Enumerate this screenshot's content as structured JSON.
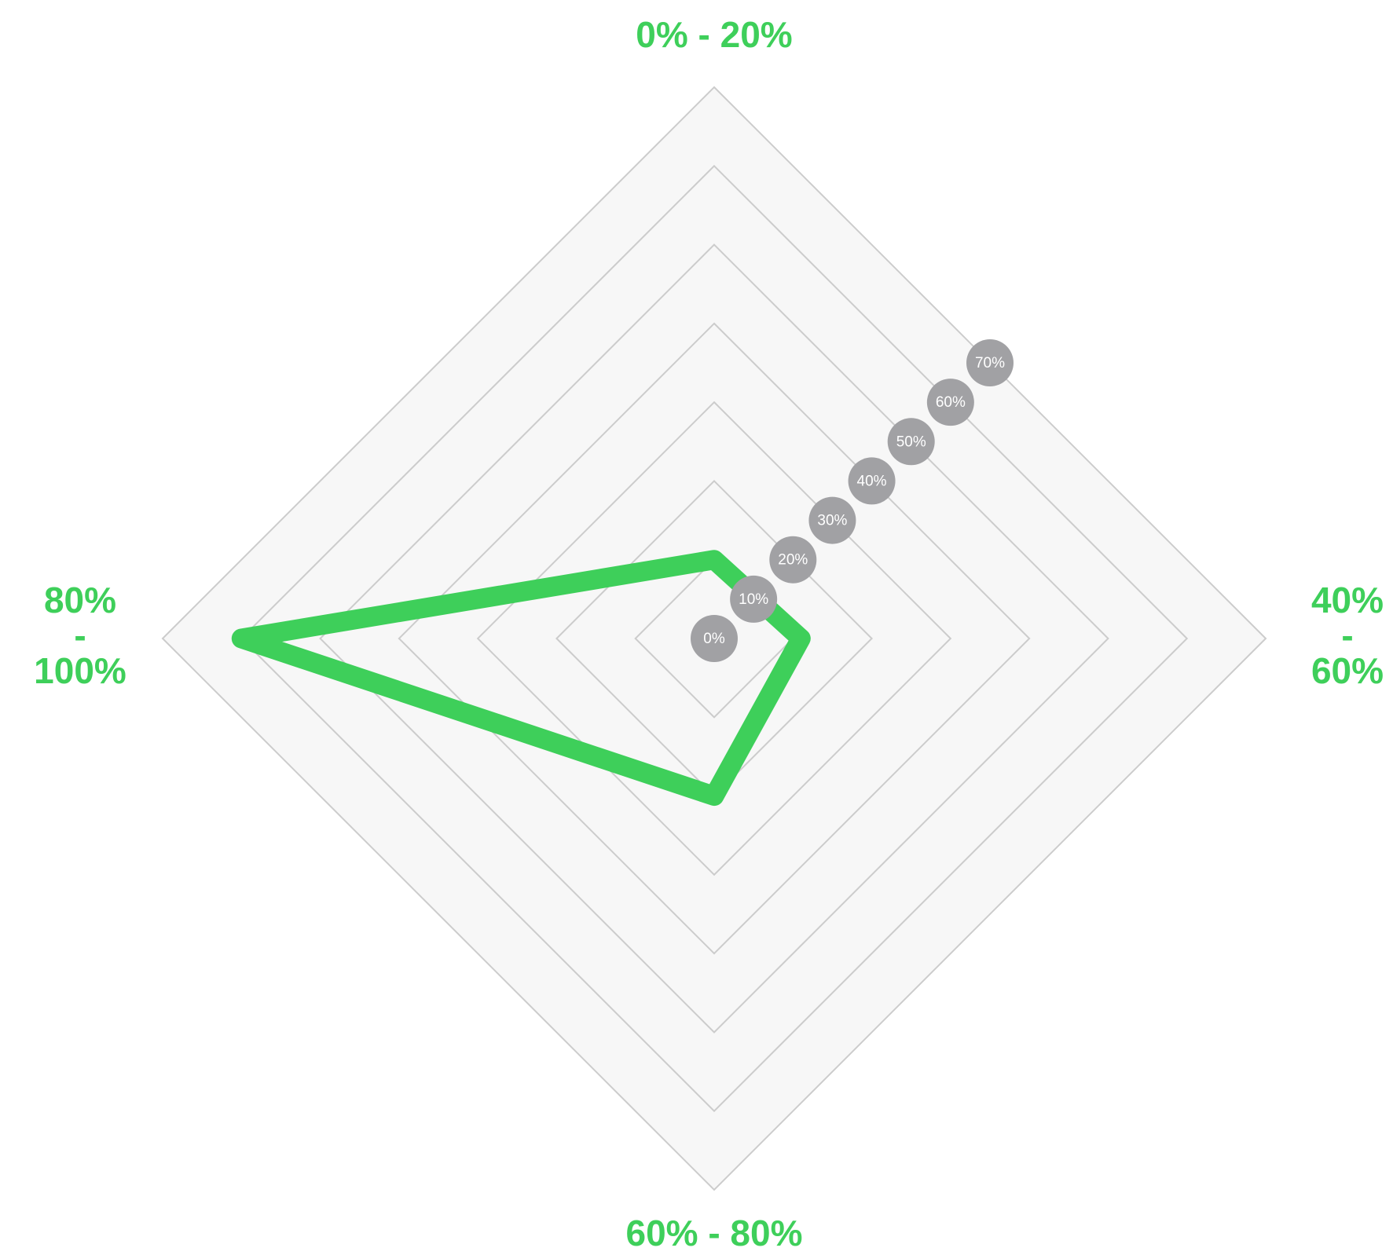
{
  "chart_data": {
    "type": "radar",
    "categories": [
      "0% - 20%",
      "40% - 60%",
      "60% - 80%",
      "80% - 100%"
    ],
    "values": [
      10,
      11,
      20,
      60
    ],
    "color": "#3ecf5a",
    "ylim": [
      0,
      70
    ],
    "yticks": [
      {
        "value": 0,
        "label": "0%"
      },
      {
        "value": 10,
        "label": "10%"
      },
      {
        "value": 20,
        "label": "20%"
      },
      {
        "value": 30,
        "label": "30%"
      },
      {
        "value": 40,
        "label": "40%"
      },
      {
        "value": 50,
        "label": "50%"
      },
      {
        "value": 60,
        "label": "60%"
      },
      {
        "value": 70,
        "label": "70%"
      }
    ],
    "grid": true
  }
}
